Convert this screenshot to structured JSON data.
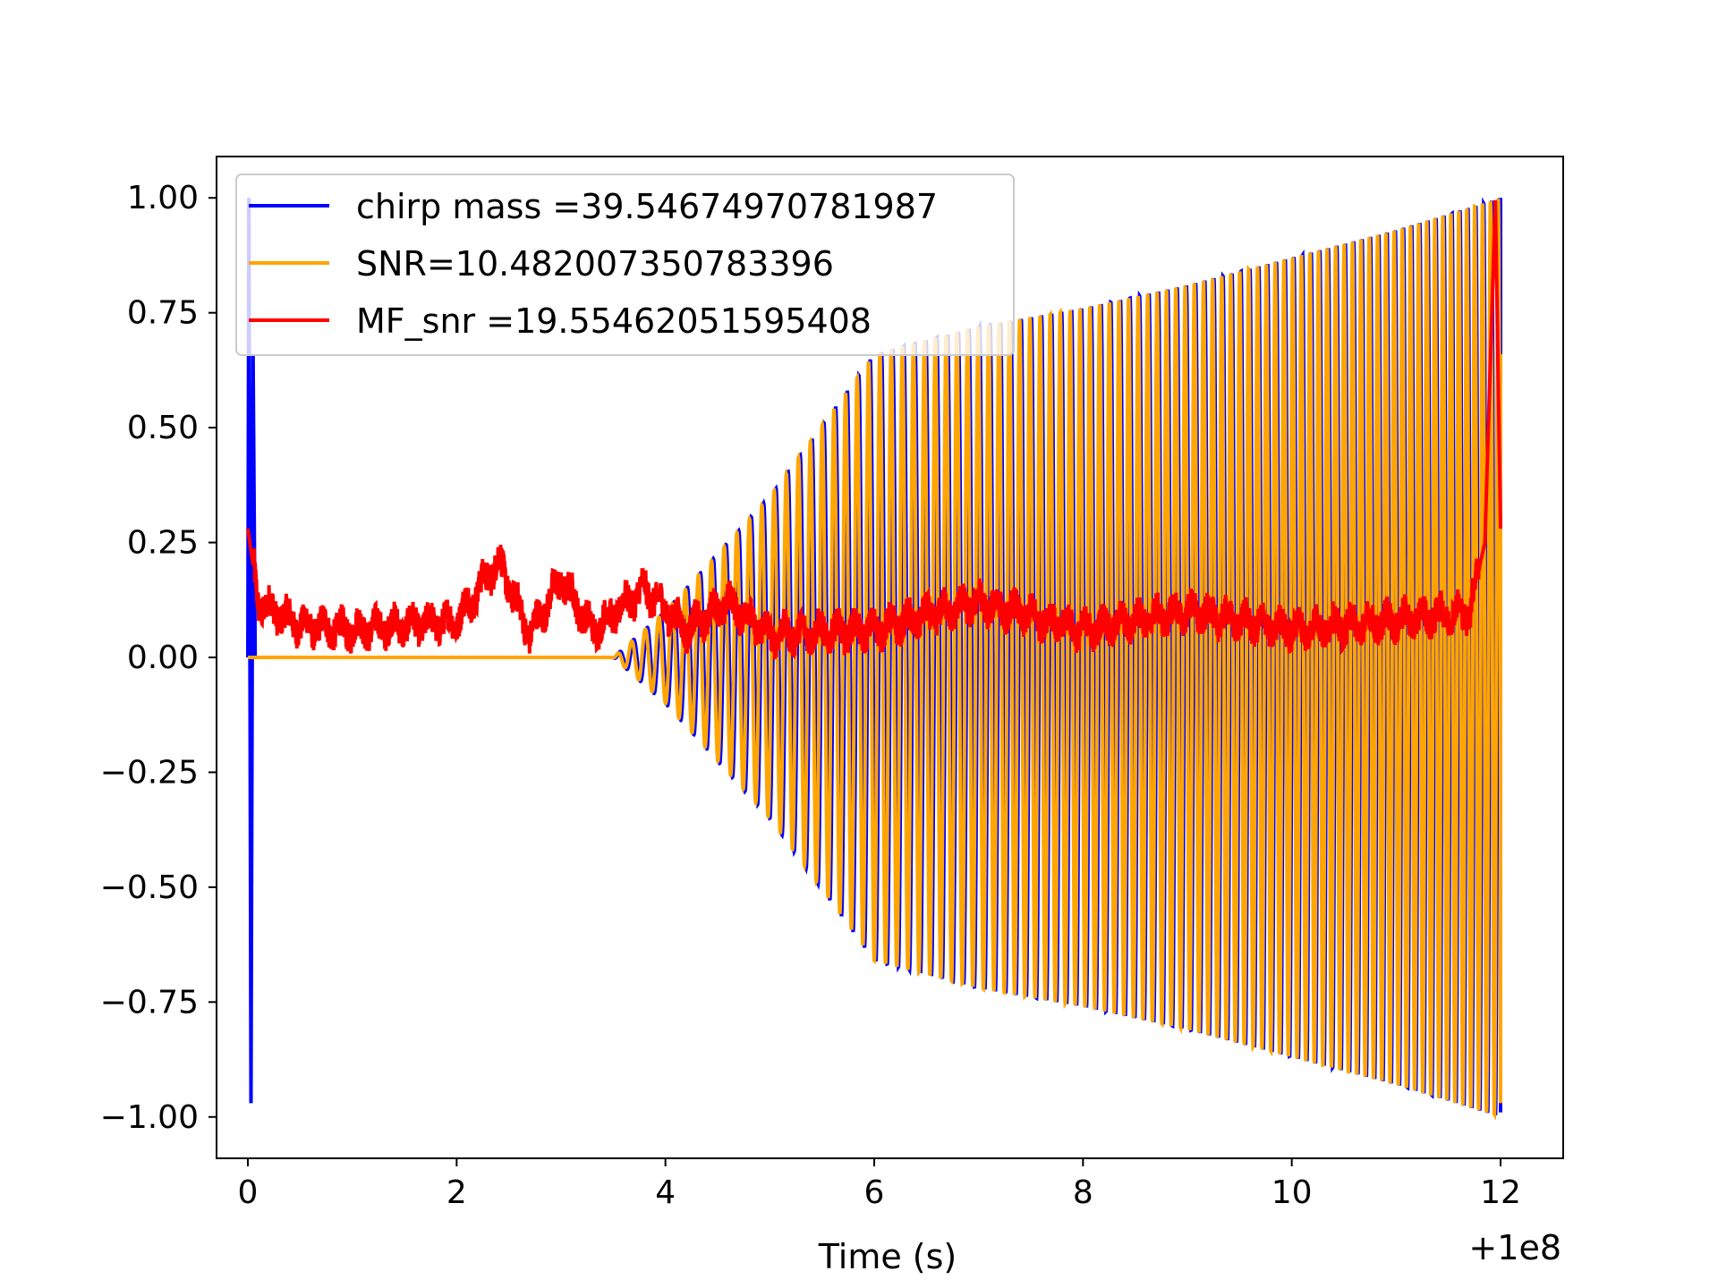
{
  "chart_data": {
    "type": "line",
    "title": "",
    "xlabel": "Time (s)",
    "ylabel": "",
    "x_offset_label": "+1e8",
    "xlim": [
      -0.3,
      12.6
    ],
    "ylim": [
      -1.09,
      1.09
    ],
    "x_ticks": [
      0,
      2,
      4,
      6,
      8,
      10,
      12
    ],
    "x_tick_labels": [
      "0",
      "2",
      "4",
      "6",
      "8",
      "10",
      "12"
    ],
    "y_ticks": [
      1.0,
      0.75,
      0.5,
      0.25,
      0.0,
      -0.25,
      -0.5,
      -0.75,
      -1.0
    ],
    "y_tick_labels": [
      "1.00",
      "0.75",
      "0.50",
      "0.25",
      "0.00",
      "−0.25",
      "−0.50",
      "−0.75",
      "−1.00"
    ],
    "grid": false,
    "legend_position": "top-left",
    "series": [
      {
        "name": "chirp mass =39.54674970781987",
        "color": "#0000ff",
        "description": "chirp waveform: near zero until ~3.5 s, amplitude grows to ~1.0 at 12 s with increasing frequency; spike to 1.0 / -0.97 near t=0",
        "envelope": [
          {
            "x": 0.0,
            "y": 0.0
          },
          {
            "x": 3.5,
            "y": 0.0
          },
          {
            "x": 4.0,
            "y": 0.1
          },
          {
            "x": 5.0,
            "y": 0.35
          },
          {
            "x": 6.0,
            "y": 0.66
          },
          {
            "x": 7.0,
            "y": 0.72
          },
          {
            "x": 8.0,
            "y": 0.76
          },
          {
            "x": 9.0,
            "y": 0.81
          },
          {
            "x": 10.0,
            "y": 0.87
          },
          {
            "x": 11.0,
            "y": 0.93
          },
          {
            "x": 12.0,
            "y": 1.0
          }
        ]
      },
      {
        "name": "SNR=10.482007350783396",
        "color": "#ffa500",
        "description": "same chirp as blue, slightly phase shifted, overlapping it"
      },
      {
        "name": "MF_snr =19.55462051595408",
        "color": "#ff0000",
        "description": "noisy matched-filter output around 0.0-0.15, peaking at 1.0 near 11.95 s",
        "points": [
          {
            "x": 0.0,
            "y": 0.28
          },
          {
            "x": 0.1,
            "y": 0.12
          },
          {
            "x": 0.5,
            "y": 0.07
          },
          {
            "x": 1.0,
            "y": 0.06
          },
          {
            "x": 1.5,
            "y": 0.07
          },
          {
            "x": 2.0,
            "y": 0.08
          },
          {
            "x": 2.4,
            "y": 0.21
          },
          {
            "x": 2.7,
            "y": 0.05
          },
          {
            "x": 3.0,
            "y": 0.17
          },
          {
            "x": 3.3,
            "y": 0.06
          },
          {
            "x": 3.8,
            "y": 0.15
          },
          {
            "x": 4.2,
            "y": 0.06
          },
          {
            "x": 4.6,
            "y": 0.12
          },
          {
            "x": 5.0,
            "y": 0.05
          },
          {
            "x": 6.0,
            "y": 0.06
          },
          {
            "x": 7.0,
            "y": 0.12
          },
          {
            "x": 8.0,
            "y": 0.06
          },
          {
            "x": 9.0,
            "y": 0.1
          },
          {
            "x": 10.0,
            "y": 0.06
          },
          {
            "x": 11.0,
            "y": 0.08
          },
          {
            "x": 11.7,
            "y": 0.1
          },
          {
            "x": 11.85,
            "y": 0.25
          },
          {
            "x": 11.95,
            "y": 1.0
          },
          {
            "x": 12.0,
            "y": 0.28
          }
        ]
      }
    ]
  }
}
